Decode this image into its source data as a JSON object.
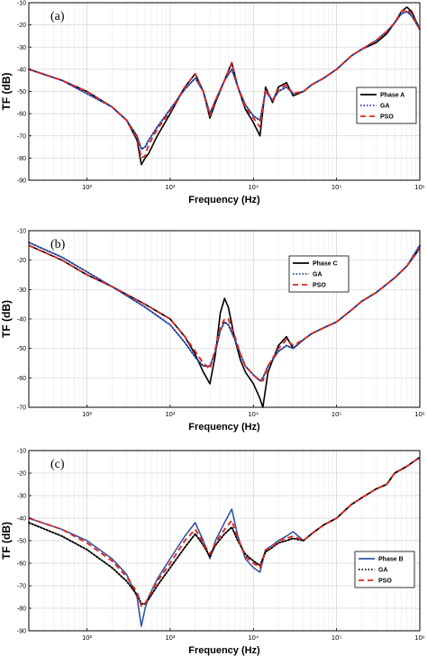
{
  "figure": {
    "background": "#ffffff"
  },
  "chart_data": [
    {
      "type": "line",
      "panel_label": "(a)",
      "xlabel": "Frequency (Hz)",
      "ylabel": "TF (dB)",
      "xscale": "log",
      "xlim": [
        20,
        1000000
      ],
      "ylim": [
        -90,
        -10
      ],
      "y_ticks": [
        -90,
        -80,
        -70,
        -60,
        -50,
        -40,
        -30,
        -20,
        -10
      ],
      "y_tick_labels": [
        "-90",
        "-80",
        "-70",
        "-60",
        "-50",
        "-40",
        "-30",
        "-20",
        "-10"
      ],
      "x_ticks": [
        100,
        1000,
        10000,
        100000,
        1000000
      ],
      "x_tick_labels": [
        "10²",
        "10³",
        "10⁴",
        "10⁵",
        "10⁶"
      ],
      "grid": true,
      "legend_position": "center-right",
      "series": [
        {
          "name": "Phase A",
          "color": "#000000",
          "style": "solid",
          "x": [
            20,
            50,
            100,
            200,
            300,
            400,
            450,
            500,
            550,
            700,
            1000,
            1500,
            2000,
            2500,
            3000,
            3500,
            4500,
            5500,
            6500,
            8000,
            10000,
            12000,
            14000,
            17000,
            20000,
            25000,
            30000,
            40000,
            50000,
            70000,
            100000,
            150000,
            200000,
            300000,
            400000,
            500000,
            600000,
            700000,
            800000,
            1000000
          ],
          "y": [
            -40,
            -45,
            -50,
            -57,
            -63,
            -72,
            -83,
            -80,
            -78,
            -70,
            -60,
            -48,
            -42,
            -50,
            -62,
            -55,
            -45,
            -37,
            -48,
            -58,
            -64,
            -70,
            -48,
            -55,
            -48,
            -46,
            -52,
            -50,
            -47,
            -44,
            -40,
            -34,
            -31,
            -28,
            -24,
            -19,
            -14,
            -12,
            -14,
            -22
          ]
        },
        {
          "name": "GA",
          "color": "#1f3d9e",
          "style": "dotted",
          "x": [
            20,
            50,
            100,
            200,
            300,
            400,
            450,
            500,
            550,
            700,
            1000,
            1500,
            2000,
            2500,
            3000,
            3500,
            4500,
            5500,
            6500,
            8000,
            10000,
            12000,
            14000,
            17000,
            20000,
            25000,
            30000,
            40000,
            50000,
            70000,
            100000,
            150000,
            200000,
            300000,
            400000,
            500000,
            600000,
            700000,
            800000,
            1000000
          ],
          "y": [
            -40,
            -45,
            -51,
            -57,
            -63,
            -70,
            -76,
            -75,
            -72,
            -66,
            -58,
            -49,
            -44,
            -50,
            -60,
            -54,
            -45,
            -40,
            -48,
            -56,
            -61,
            -63,
            -50,
            -54,
            -50,
            -48,
            -51,
            -50,
            -47,
            -44,
            -40,
            -34,
            -31,
            -27,
            -23,
            -19,
            -15,
            -14,
            -16,
            -22
          ]
        },
        {
          "name": "PSO",
          "color": "#e0251b",
          "style": "dashed",
          "x": [
            20,
            50,
            100,
            200,
            300,
            400,
            450,
            500,
            550,
            700,
            1000,
            1500,
            2000,
            2500,
            3000,
            3500,
            4500,
            5500,
            6500,
            8000,
            10000,
            12000,
            14000,
            17000,
            20000,
            25000,
            30000,
            40000,
            50000,
            70000,
            100000,
            150000,
            200000,
            300000,
            400000,
            500000,
            600000,
            700000,
            800000,
            1000000
          ],
          "y": [
            -40,
            -45,
            -50,
            -57,
            -63,
            -71,
            -80,
            -79,
            -74,
            -67,
            -59,
            -48,
            -42,
            -50,
            -61,
            -54,
            -45,
            -37,
            -48,
            -57,
            -62,
            -66,
            -49,
            -54,
            -49,
            -47,
            -51,
            -50,
            -47,
            -44,
            -40,
            -34,
            -31,
            -27,
            -23,
            -19,
            -14,
            -13,
            -15,
            -22
          ]
        }
      ]
    },
    {
      "type": "line",
      "panel_label": "(b)",
      "xlabel": "Frequency (Hz)",
      "ylabel": "TF (dB)",
      "xscale": "log",
      "xlim": [
        20,
        1000000
      ],
      "ylim": [
        -70,
        -10
      ],
      "y_ticks": [
        -70,
        -60,
        -50,
        -40,
        -30,
        -20,
        -10
      ],
      "y_tick_labels": [
        "-70",
        "-60",
        "-50",
        "-40",
        "-30",
        "-20",
        "-10"
      ],
      "x_ticks": [
        100,
        1000,
        10000,
        100000,
        1000000
      ],
      "x_tick_labels": [
        "10²",
        "10³",
        "10⁴",
        "10⁵",
        "10⁶"
      ],
      "grid": true,
      "legend_position": "top-right",
      "series": [
        {
          "name": "Phase C",
          "color": "#000000",
          "style": "solid",
          "x": [
            20,
            50,
            100,
            200,
            500,
            1000,
            1500,
            2000,
            2500,
            3000,
            3500,
            4000,
            4500,
            5000,
            6000,
            7000,
            8000,
            10000,
            12000,
            13000,
            15000,
            20000,
            25000,
            30000,
            40000,
            50000,
            70000,
            100000,
            150000,
            200000,
            300000,
            500000,
            700000,
            1000000
          ],
          "y": [
            -15,
            -20,
            -25,
            -29,
            -35,
            -40,
            -46,
            -52,
            -58,
            -62,
            -52,
            -38,
            -33,
            -36,
            -47,
            -54,
            -58,
            -62,
            -67,
            -70,
            -58,
            -49,
            -46,
            -50,
            -47,
            -45,
            -43,
            -41,
            -37,
            -34,
            -31,
            -26,
            -22,
            -16
          ]
        },
        {
          "name": "GA",
          "color": "#1f3d9e",
          "style": "dotted",
          "x": [
            20,
            50,
            100,
            200,
            500,
            1000,
            1500,
            2000,
            2500,
            3000,
            3500,
            4000,
            4500,
            5000,
            6000,
            7000,
            8000,
            10000,
            12000,
            13000,
            15000,
            20000,
            25000,
            30000,
            40000,
            50000,
            70000,
            100000,
            150000,
            200000,
            300000,
            500000,
            700000,
            1000000
          ],
          "y": [
            -14,
            -19,
            -24,
            -29,
            -36,
            -42,
            -48,
            -53,
            -56,
            -56,
            -51,
            -44,
            -41,
            -42,
            -47,
            -52,
            -56,
            -59,
            -61,
            -60,
            -56,
            -51,
            -49,
            -50,
            -47,
            -45,
            -43,
            -41,
            -37,
            -34,
            -31,
            -26,
            -22,
            -15
          ]
        },
        {
          "name": "PSO",
          "color": "#e0251b",
          "style": "dashed",
          "x": [
            20,
            50,
            100,
            200,
            500,
            1000,
            1500,
            2000,
            2500,
            3000,
            3500,
            4000,
            4500,
            5000,
            6000,
            7000,
            8000,
            10000,
            12000,
            13000,
            15000,
            20000,
            25000,
            30000,
            40000,
            50000,
            70000,
            100000,
            150000,
            200000,
            300000,
            500000,
            700000,
            1000000
          ],
          "y": [
            -15,
            -20,
            -25,
            -29,
            -35,
            -40,
            -46,
            -51,
            -55,
            -57,
            -50,
            -43,
            -40,
            -40,
            -46,
            -52,
            -56,
            -59,
            -61,
            -61,
            -56,
            -50,
            -47,
            -49,
            -47,
            -45,
            -43,
            -41,
            -37,
            -34,
            -31,
            -26,
            -22,
            -16
          ]
        }
      ]
    },
    {
      "type": "line",
      "panel_label": "(c)",
      "xlabel": "Frequency (Hz)",
      "ylabel": "TF (dB)",
      "xscale": "log",
      "xlim": [
        20,
        1000000
      ],
      "ylim": [
        -90,
        -10
      ],
      "y_ticks": [
        -90,
        -80,
        -70,
        -60,
        -50,
        -40,
        -30,
        -20,
        -10
      ],
      "y_tick_labels": [
        "-90",
        "-80",
        "-70",
        "-60",
        "-50",
        "-40",
        "-30",
        "-20",
        "-10"
      ],
      "x_ticks": [
        100,
        1000,
        10000,
        100000,
        1000000
      ],
      "x_tick_labels": [
        "10²",
        "10³",
        "10⁴",
        "10⁵",
        "10⁶"
      ],
      "grid": true,
      "legend_position": "center-right",
      "series": [
        {
          "name": "Phase B",
          "color": "#3355a6",
          "style": "solid",
          "x": [
            20,
            50,
            100,
            200,
            300,
            400,
            450,
            500,
            550,
            700,
            1000,
            1500,
            2000,
            2500,
            3000,
            3500,
            4500,
            5500,
            6500,
            8000,
            10000,
            12000,
            14000,
            17000,
            20000,
            25000,
            30000,
            40000,
            50000,
            70000,
            100000,
            150000,
            200000,
            300000,
            400000,
            500000,
            700000,
            1000000
          ],
          "y": [
            -40,
            -45,
            -50,
            -58,
            -65,
            -75,
            -88,
            -80,
            -75,
            -67,
            -58,
            -48,
            -42,
            -50,
            -58,
            -50,
            -42,
            -36,
            -48,
            -58,
            -62,
            -64,
            -54,
            -52,
            -50,
            -48,
            -46,
            -50,
            -47,
            -43,
            -40,
            -34,
            -31,
            -27,
            -25,
            -20,
            -17,
            -13
          ]
        },
        {
          "name": "GA",
          "color": "#000000",
          "style": "dotted",
          "x": [
            20,
            50,
            100,
            200,
            300,
            400,
            450,
            500,
            550,
            700,
            1000,
            1500,
            2000,
            2500,
            3000,
            3500,
            4500,
            5500,
            6500,
            8000,
            10000,
            12000,
            14000,
            17000,
            20000,
            25000,
            30000,
            40000,
            50000,
            70000,
            100000,
            150000,
            200000,
            300000,
            400000,
            500000,
            700000,
            1000000
          ],
          "y": [
            -42,
            -48,
            -54,
            -62,
            -68,
            -74,
            -78,
            -78,
            -76,
            -70,
            -62,
            -53,
            -47,
            -52,
            -57,
            -52,
            -47,
            -44,
            -50,
            -56,
            -59,
            -61,
            -55,
            -53,
            -51,
            -50,
            -49,
            -50,
            -47,
            -43,
            -40,
            -34,
            -31,
            -27,
            -25,
            -20,
            -17,
            -13
          ]
        },
        {
          "name": "PSO",
          "color": "#e0251b",
          "style": "dashed",
          "x": [
            20,
            50,
            100,
            200,
            300,
            400,
            450,
            500,
            550,
            700,
            1000,
            1500,
            2000,
            2500,
            3000,
            3500,
            4500,
            5500,
            6500,
            8000,
            10000,
            12000,
            14000,
            17000,
            20000,
            25000,
            30000,
            40000,
            50000,
            70000,
            100000,
            150000,
            200000,
            300000,
            400000,
            500000,
            700000,
            1000000
          ],
          "y": [
            -40,
            -45,
            -51,
            -59,
            -66,
            -73,
            -79,
            -78,
            -75,
            -68,
            -60,
            -50,
            -45,
            -51,
            -56,
            -51,
            -45,
            -41,
            -49,
            -57,
            -60,
            -62,
            -54,
            -53,
            -50,
            -49,
            -48,
            -50,
            -47,
            -43,
            -40,
            -34,
            -31,
            -27,
            -25,
            -20,
            -17,
            -13
          ]
        }
      ]
    }
  ]
}
